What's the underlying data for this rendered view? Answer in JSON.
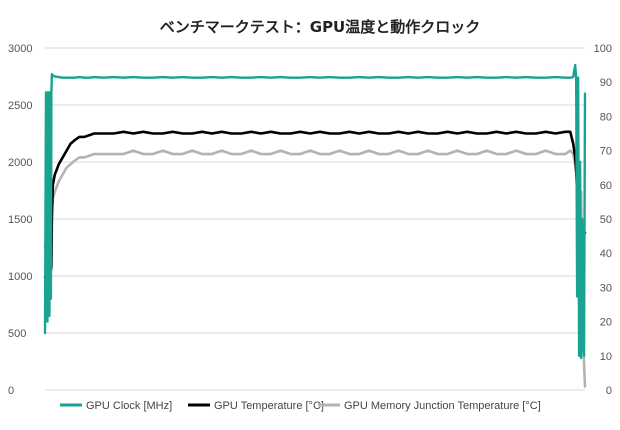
{
  "chart_data": {
    "type": "line",
    "title": "ベンチマークテスト：GPU温度と動作クロック",
    "x": [
      0,
      1,
      1.5,
      2,
      2.5,
      3,
      3.5,
      4,
      4.5,
      5,
      5.5,
      6,
      6.5,
      7,
      8,
      10,
      14,
      18,
      22,
      26,
      30,
      35,
      40,
      45,
      50,
      60,
      70,
      80,
      90,
      100,
      110,
      120,
      130,
      140,
      150,
      160,
      170,
      180,
      190,
      200,
      210,
      220,
      230,
      240,
      250,
      260,
      270,
      280,
      290,
      300,
      310,
      320,
      330,
      340,
      350,
      360,
      370,
      380,
      390,
      400,
      410,
      420,
      430,
      440,
      450,
      460,
      470,
      480,
      490,
      500,
      510,
      520,
      530,
      535,
      538,
      540,
      541,
      542,
      543,
      544,
      545,
      546,
      547,
      548,
      549,
      550
    ],
    "y_left": {
      "range": [
        0,
        3000
      ],
      "ticks": [
        "0",
        "500",
        "1000",
        "1500",
        "2000",
        "2500",
        "3000"
      ]
    },
    "y_right": {
      "range": [
        0,
        100
      ],
      "ticks": [
        "0",
        "10",
        "20",
        "30",
        "40",
        "50",
        "60",
        "70",
        "80",
        "90",
        "100"
      ]
    },
    "grid": true,
    "legend_position": "bottom",
    "series": [
      {
        "name": "GPU Clock [MHz]",
        "axis": "left",
        "color": "#1aa391",
        "values": [
          500,
          2610,
          1200,
          2610,
          600,
          2610,
          700,
          2610,
          650,
          2610,
          1000,
          800,
          2610,
          2770,
          2760,
          2750,
          2745,
          2740,
          2740,
          2740,
          2740,
          2745,
          2740,
          2740,
          2745,
          2740,
          2745,
          2740,
          2745,
          2740,
          2740,
          2745,
          2740,
          2745,
          2740,
          2740,
          2745,
          2740,
          2745,
          2740,
          2740,
          2745,
          2740,
          2745,
          2740,
          2740,
          2745,
          2740,
          2745,
          2740,
          2740,
          2745,
          2740,
          2745,
          2740,
          2740,
          2745,
          2740,
          2745,
          2740,
          2740,
          2745,
          2740,
          2745,
          2740,
          2740,
          2745,
          2740,
          2745,
          2740,
          2740,
          2745,
          2740,
          2740,
          2745,
          2850,
          2740,
          820,
          2740,
          300,
          2000,
          280,
          1500,
          400,
          300,
          2600
        ]
      },
      {
        "name": "GPU Temperature [°C]",
        "axis": "right",
        "color": "#000000",
        "values": [
          33,
          34,
          34,
          34,
          34,
          34,
          34,
          34,
          34,
          35,
          35,
          35,
          36,
          50,
          60,
          63,
          66,
          68,
          70,
          72,
          73,
          74,
          74,
          74.5,
          75,
          75,
          75,
          75.5,
          75,
          75.5,
          75,
          75,
          75.5,
          75,
          75,
          75.5,
          75,
          75.5,
          75,
          75,
          75.5,
          75,
          75.5,
          75,
          75,
          75.5,
          75,
          75.5,
          75,
          75,
          75.5,
          75,
          75.5,
          75,
          75,
          75.5,
          75,
          75.5,
          75,
          75,
          75.5,
          75,
          75.5,
          75,
          75,
          75.5,
          75,
          75.5,
          75,
          75,
          75.5,
          75,
          75.5,
          75.5,
          72,
          68,
          64,
          58,
          52,
          50,
          49,
          48,
          47,
          47,
          46,
          46
        ]
      },
      {
        "name": "GPU Memory Junction Temperature [°C]",
        "axis": "right",
        "color": "#b3b3b3",
        "values": [
          42,
          44,
          44,
          44,
          44,
          44,
          44,
          44,
          44,
          44,
          44,
          44,
          44,
          52,
          56,
          58,
          61,
          63,
          65,
          66,
          67,
          68,
          68,
          68.5,
          69,
          69,
          69,
          69,
          70,
          69,
          69,
          70,
          69,
          69,
          70,
          69,
          69,
          70,
          69,
          69,
          70,
          69,
          69,
          70,
          69,
          69,
          70,
          69,
          69,
          70,
          69,
          69,
          70,
          69,
          69,
          70,
          69,
          69,
          70,
          69,
          69,
          70,
          69,
          69,
          70,
          69,
          69,
          70,
          69,
          69,
          70,
          69,
          69,
          70,
          69,
          66,
          64,
          62,
          60,
          59,
          58,
          58,
          35,
          20,
          8,
          1
        ]
      }
    ]
  }
}
